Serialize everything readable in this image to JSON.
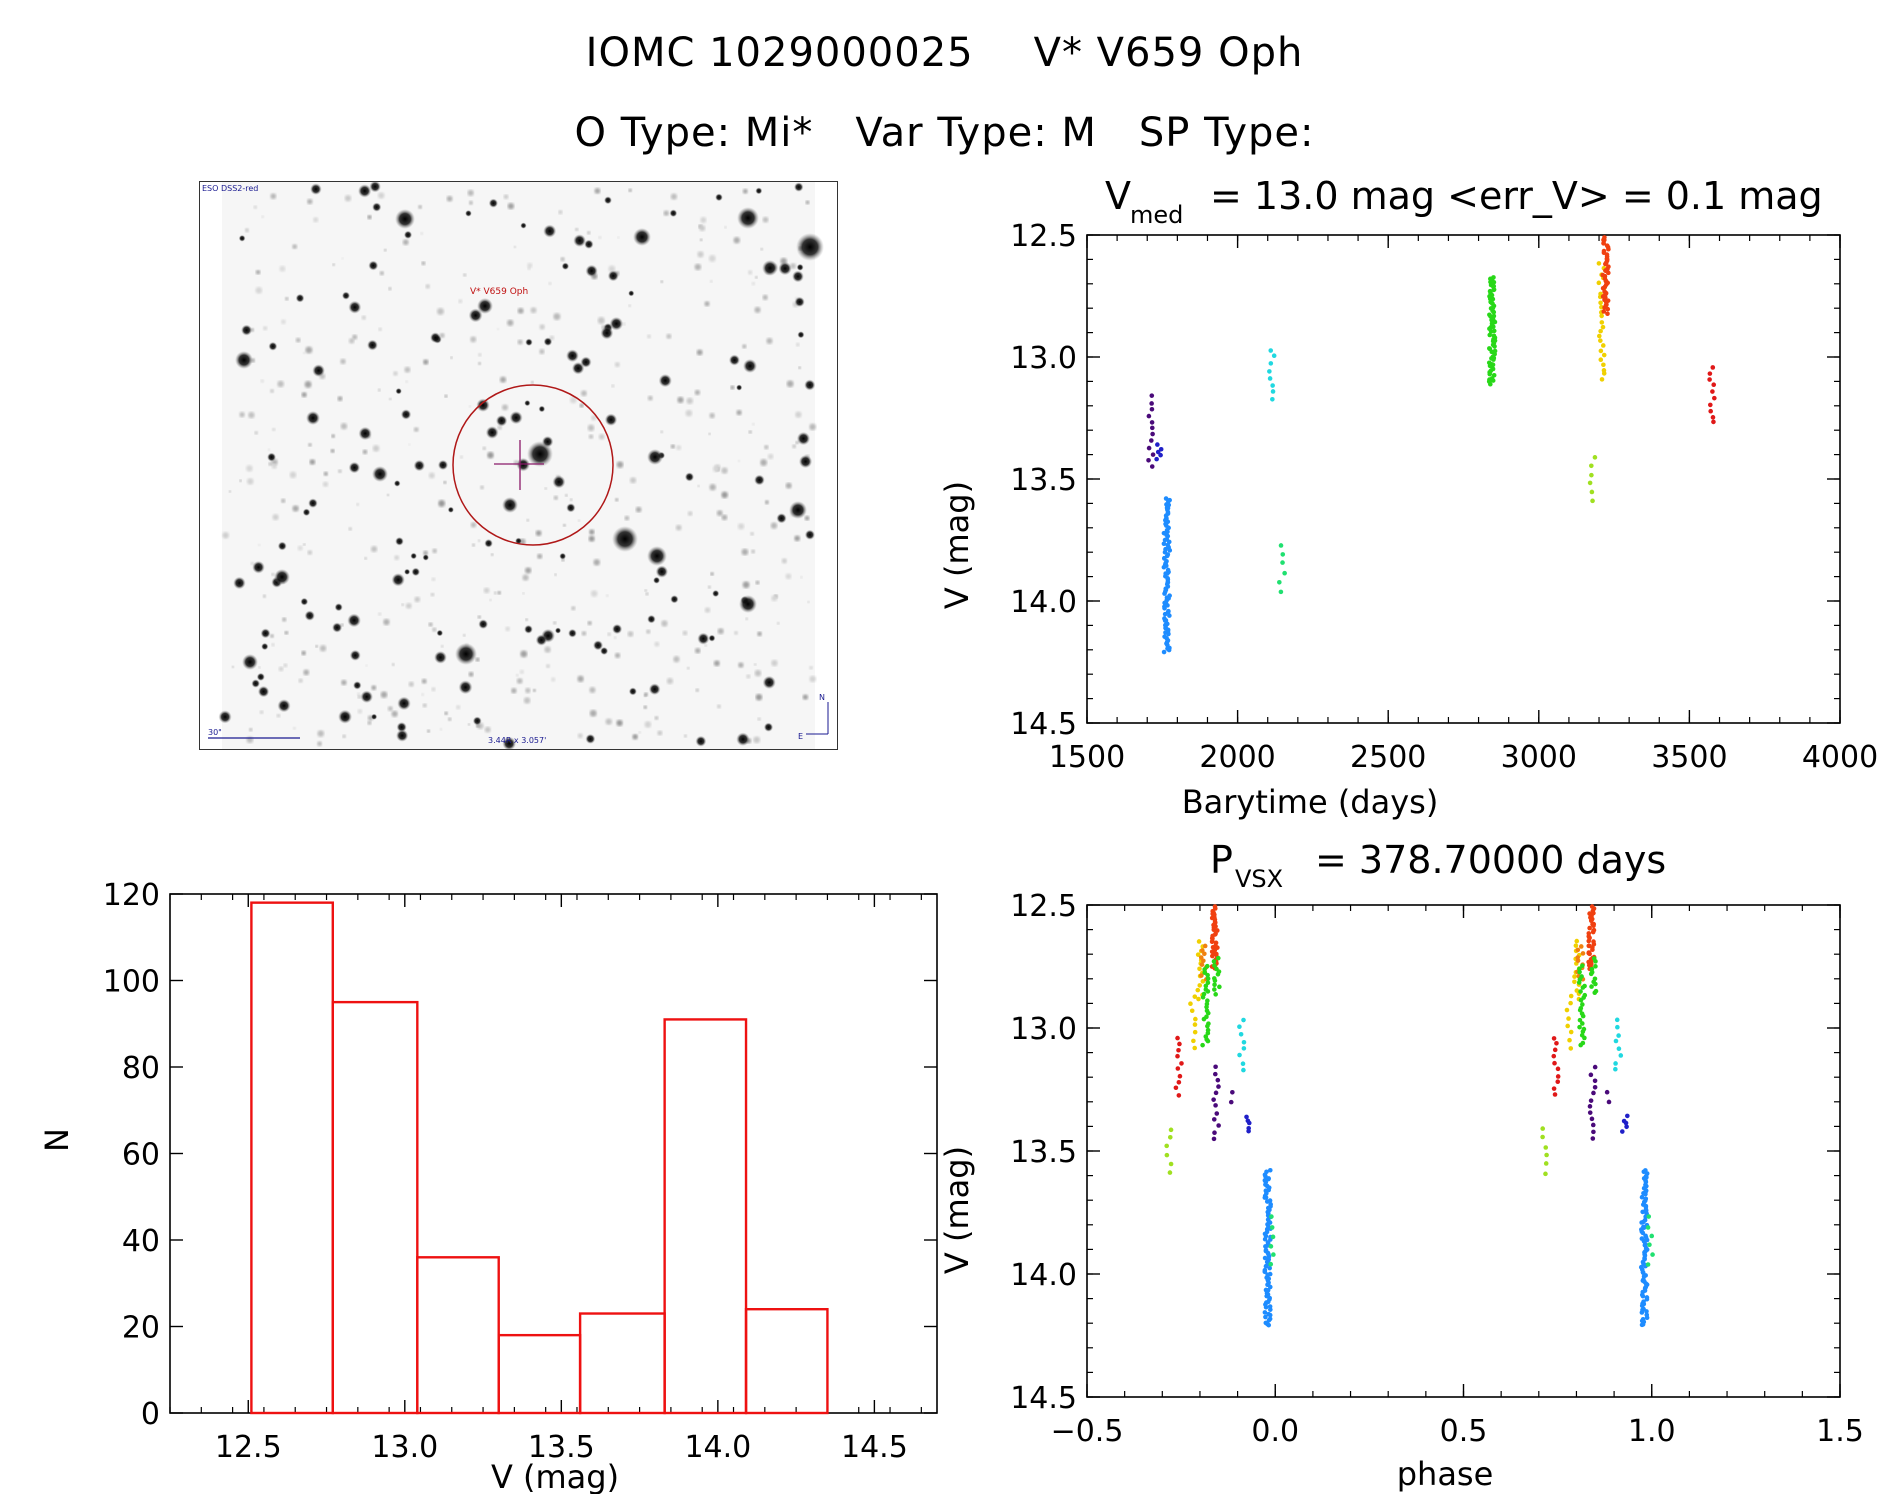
{
  "header": {
    "object_id": "IOMC 1029000025",
    "star_name": "V* V659 Oph",
    "o_type": "O Type: Mi*",
    "var_type": "Var Type: M",
    "sp_type": "SP Type:"
  },
  "thumbnail": {
    "survey_label": "ESO DSS2-red",
    "target_label": "V* V659 Oph",
    "scale_label": "30\"",
    "size_label": "3.44R x 3.057'",
    "north_label": "N",
    "east_label": "E"
  },
  "chart_data": [
    {
      "id": "light_curve",
      "type": "scatter",
      "title_prefix": "V",
      "title_sub": "med",
      "title_rest": "= 13.0 mag <err_V> = 0.1 mag",
      "xlabel": "Barytime (days)",
      "ylabel": "V (mag)",
      "xlim": [
        1500,
        4000
      ],
      "ylim": [
        14.5,
        12.5
      ],
      "xticks": [
        1500,
        2000,
        2500,
        3000,
        3500,
        4000
      ],
      "xtick_labels": [
        "1500",
        "2000",
        "2500",
        "3000",
        "3500",
        "4000"
      ],
      "yticks": [
        12.5,
        13.0,
        13.5,
        14.0,
        14.5
      ],
      "ytick_labels": [
        "12.5",
        "13.0",
        "13.5",
        "14.0",
        "14.5"
      ],
      "groups": [
        {
          "x": 1712,
          "y_min": 13.16,
          "y_max": 13.45,
          "n": 12,
          "color": "#4a0a7a"
        },
        {
          "x": 1738,
          "y_min": 13.36,
          "y_max": 13.42,
          "n": 5,
          "color": "#2020c8"
        },
        {
          "x": 1765,
          "y_min": 13.58,
          "y_max": 14.21,
          "n": 90,
          "color": "#1e8cff"
        },
        {
          "x": 2112,
          "y_min": 12.97,
          "y_max": 13.17,
          "n": 8,
          "color": "#20d8e0"
        },
        {
          "x": 2148,
          "y_min": 13.77,
          "y_max": 13.96,
          "n": 6,
          "color": "#20e070"
        },
        {
          "x": 2845,
          "y_min": 12.67,
          "y_max": 13.11,
          "n": 70,
          "color": "#28d818"
        },
        {
          "x": 3180,
          "y_min": 13.41,
          "y_max": 13.59,
          "n": 6,
          "color": "#a0e020"
        },
        {
          "x": 3208,
          "y_min": 12.62,
          "y_max": 13.09,
          "n": 25,
          "color": "#f0d000"
        },
        {
          "x": 3222,
          "y_min": 12.51,
          "y_max": 12.82,
          "n": 45,
          "color": "#f04010"
        },
        {
          "x": 3575,
          "y_min": 13.04,
          "y_max": 13.27,
          "n": 10,
          "color": "#e01818"
        }
      ]
    },
    {
      "id": "histogram",
      "type": "bar",
      "xlabel": "V (mag)",
      "ylabel": "N",
      "xlim": [
        12.25,
        14.7
      ],
      "ylim": [
        0,
        120
      ],
      "xticks": [
        12.5,
        13.0,
        13.5,
        14.0,
        14.5
      ],
      "xtick_labels": [
        "12.5",
        "13.0",
        "13.5",
        "14.0",
        "14.5"
      ],
      "yticks": [
        0,
        20,
        40,
        60,
        80,
        100,
        120
      ],
      "ytick_labels": [
        "0",
        "20",
        "40",
        "60",
        "80",
        "100",
        "120"
      ],
      "bin_edges": [
        12.51,
        12.77,
        13.04,
        13.3,
        13.56,
        13.83,
        14.09,
        14.35
      ],
      "values": [
        118,
        95,
        36,
        18,
        23,
        91,
        24
      ],
      "color": "#ee1111"
    },
    {
      "id": "phase_curve",
      "type": "scatter",
      "title_prefix": "P",
      "title_sub": "VSX",
      "title_rest": "= 378.70000 days",
      "xlabel": "phase",
      "ylabel": "V (mag)",
      "xlim": [
        -0.5,
        1.5
      ],
      "ylim": [
        14.5,
        12.5
      ],
      "xticks": [
        -0.5,
        0.0,
        0.5,
        1.0,
        1.5
      ],
      "xtick_labels": [
        "−0.5",
        "0.0",
        "0.5",
        "1.0",
        "1.5"
      ],
      "yticks": [
        12.5,
        13.0,
        13.5,
        14.0,
        14.5
      ],
      "ytick_labels": [
        "12.5",
        "13.0",
        "13.5",
        "14.0",
        "14.5"
      ],
      "groups": [
        {
          "x": -0.283,
          "y_min": 13.41,
          "y_max": 13.59,
          "n": 6,
          "color": "#a0e020"
        },
        {
          "x": -0.256,
          "y_min": 13.04,
          "y_max": 13.27,
          "n": 10,
          "color": "#e01818"
        },
        {
          "x": -0.22,
          "y_min": 12.87,
          "y_max": 13.08,
          "n": 8,
          "color": "#f0d000"
        },
        {
          "x": -0.2,
          "y_min": 12.65,
          "y_max": 12.88,
          "n": 14,
          "color": "#f0d000"
        },
        {
          "x": -0.19,
          "y_min": 12.67,
          "y_max": 12.8,
          "n": 10,
          "color": "#f08010"
        },
        {
          "x": -0.185,
          "y_min": 12.75,
          "y_max": 13.07,
          "n": 26,
          "color": "#28d818"
        },
        {
          "x": -0.16,
          "y_min": 12.51,
          "y_max": 12.76,
          "n": 40,
          "color": "#f04010"
        },
        {
          "x": -0.155,
          "y_min": 12.72,
          "y_max": 12.86,
          "n": 12,
          "color": "#28d818"
        },
        {
          "x": -0.158,
          "y_min": 13.16,
          "y_max": 13.45,
          "n": 12,
          "color": "#4a0a7a"
        },
        {
          "x": -0.112,
          "y_min": 13.26,
          "y_max": 13.3,
          "n": 2,
          "color": "#4a0a7a"
        },
        {
          "x": -0.09,
          "y_min": 12.97,
          "y_max": 13.17,
          "n": 8,
          "color": "#20d8e0"
        },
        {
          "x": -0.072,
          "y_min": 13.36,
          "y_max": 13.42,
          "n": 5,
          "color": "#2020c8"
        },
        {
          "x": -0.02,
          "y_min": 13.58,
          "y_max": 14.21,
          "n": 90,
          "color": "#1e8cff"
        },
        {
          "x": -0.004,
          "y_min": 13.77,
          "y_max": 13.96,
          "n": 6,
          "color": "#20e070"
        },
        {
          "x": 0.717,
          "y_min": 13.41,
          "y_max": 13.59,
          "n": 6,
          "color": "#a0e020"
        },
        {
          "x": 0.744,
          "y_min": 13.04,
          "y_max": 13.27,
          "n": 10,
          "color": "#e01818"
        },
        {
          "x": 0.78,
          "y_min": 12.87,
          "y_max": 13.08,
          "n": 8,
          "color": "#f0d000"
        },
        {
          "x": 0.8,
          "y_min": 12.65,
          "y_max": 12.88,
          "n": 14,
          "color": "#f0d000"
        },
        {
          "x": 0.81,
          "y_min": 12.67,
          "y_max": 12.8,
          "n": 10,
          "color": "#f08010"
        },
        {
          "x": 0.815,
          "y_min": 12.75,
          "y_max": 13.07,
          "n": 26,
          "color": "#28d818"
        },
        {
          "x": 0.84,
          "y_min": 12.51,
          "y_max": 12.76,
          "n": 40,
          "color": "#f04010"
        },
        {
          "x": 0.845,
          "y_min": 12.72,
          "y_max": 12.86,
          "n": 12,
          "color": "#28d818"
        },
        {
          "x": 0.842,
          "y_min": 13.16,
          "y_max": 13.45,
          "n": 12,
          "color": "#4a0a7a"
        },
        {
          "x": 0.888,
          "y_min": 13.26,
          "y_max": 13.3,
          "n": 2,
          "color": "#4a0a7a"
        },
        {
          "x": 0.91,
          "y_min": 12.97,
          "y_max": 13.17,
          "n": 8,
          "color": "#20d8e0"
        },
        {
          "x": 0.928,
          "y_min": 13.36,
          "y_max": 13.42,
          "n": 5,
          "color": "#2020c8"
        },
        {
          "x": 0.98,
          "y_min": 13.58,
          "y_max": 14.21,
          "n": 90,
          "color": "#1e8cff"
        },
        {
          "x": 0.996,
          "y_min": 13.77,
          "y_max": 13.96,
          "n": 6,
          "color": "#20e070"
        }
      ]
    }
  ]
}
